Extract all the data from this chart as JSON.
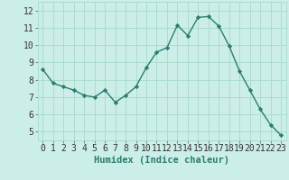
{
  "x": [
    0,
    1,
    2,
    3,
    4,
    5,
    6,
    7,
    8,
    9,
    10,
    11,
    12,
    13,
    14,
    15,
    16,
    17,
    18,
    19,
    20,
    21,
    22,
    23
  ],
  "y": [
    8.6,
    7.8,
    7.6,
    7.4,
    7.1,
    7.0,
    7.4,
    6.7,
    7.1,
    7.6,
    8.7,
    9.6,
    9.85,
    11.15,
    10.55,
    11.6,
    11.65,
    11.1,
    9.95,
    8.5,
    7.4,
    6.3,
    5.4,
    4.8
  ],
  "line_color": "#2a7d6e",
  "marker": "D",
  "marker_size": 2.2,
  "line_width": 1.0,
  "bg_color": "#cceee8",
  "grid_color": "#aaddcc",
  "xlabel": "Humidex (Indice chaleur)",
  "xlabel_fontsize": 7.5,
  "tick_fontsize": 7,
  "xlim": [
    -0.5,
    23.5
  ],
  "ylim": [
    4.5,
    12.5
  ],
  "yticks": [
    5,
    6,
    7,
    8,
    9,
    10,
    11,
    12
  ],
  "xticks": [
    0,
    1,
    2,
    3,
    4,
    5,
    6,
    7,
    8,
    9,
    10,
    11,
    12,
    13,
    14,
    15,
    16,
    17,
    18,
    19,
    20,
    21,
    22,
    23
  ]
}
